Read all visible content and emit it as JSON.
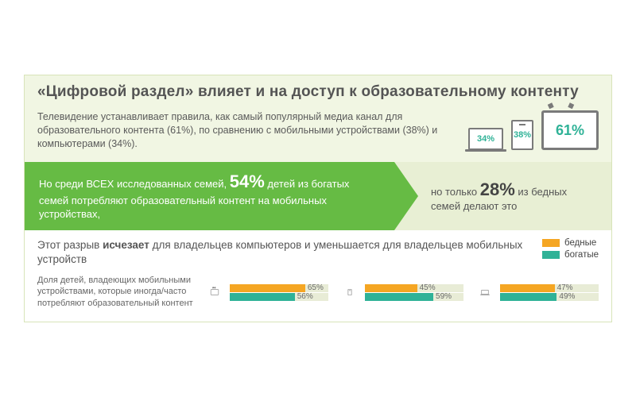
{
  "colors": {
    "card_bg": "#f1f6e3",
    "green_band": "#66bb44",
    "pale_band": "#e8efd4",
    "teal": "#2fb297",
    "orange": "#f5a623",
    "track": "#e8ecd6",
    "grey_icon": "#7a7a7a"
  },
  "title": "«Цифровой раздел» влияет и на доступ к образовательному контенту",
  "subtitle": "Телевидение устанавливает правила, как самый популярный медиа канал для образовательного контента (61%), по сравнению с мобильными устройствами (38%) и компьютерами (34%).",
  "topDevices": {
    "computer": "34%",
    "mobile": "38%",
    "tv": "61%"
  },
  "mid": {
    "left_pre": "Но среди ВСЕХ исследованных семей, ",
    "left_big": "54%",
    "left_post": " детей из богатых семей потребляют образовательный контент на мобильных устройствах,",
    "right_pre": "но только ",
    "right_big": "28%",
    "right_post": " из бедных семей делают это"
  },
  "lower": {
    "title_pre": "Этот разрыв ",
    "title_strong": "исчезает",
    "title_post": " для владельцев компьютеров и уменьшается для владельцев мобильных устройств",
    "legend": {
      "poor": "бедные",
      "rich": "богатые"
    },
    "caption": "Доля детей, владеющих мобильными устройствами, которые иногда/часто потребляют образовательный контент",
    "groups": [
      {
        "icon": "tv",
        "poor": 65,
        "rich": 56
      },
      {
        "icon": "phone",
        "poor": 45,
        "rich": 59
      },
      {
        "icon": "laptop",
        "poor": 47,
        "rich": 49
      }
    ],
    "bar_max": 85
  }
}
